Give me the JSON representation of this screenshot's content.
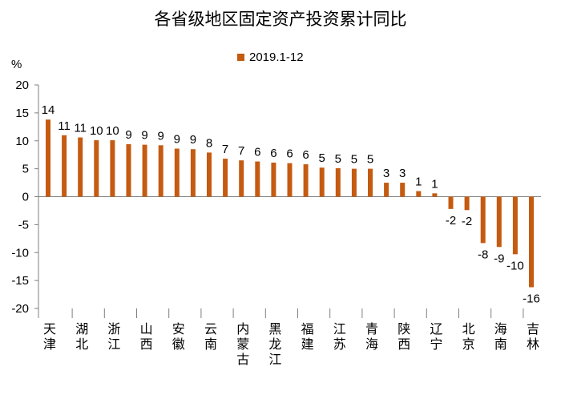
{
  "chart_data": {
    "type": "bar",
    "title": "各省级地区固定资产投资累计同比",
    "ylabel": "%",
    "xlabel": "",
    "ylim": [
      -20,
      20
    ],
    "yticks": [
      20,
      15,
      10,
      5,
      0,
      -5,
      -10,
      -15,
      -20
    ],
    "legend": "top-center",
    "grid": false,
    "series": [
      {
        "name": "2019.1-12",
        "color": "#C55A11",
        "values": [
          14,
          11,
          11,
          10,
          10,
          9,
          9,
          9,
          9,
          9,
          8,
          7,
          7,
          6,
          6,
          6,
          6,
          5,
          5,
          5,
          5,
          3,
          3,
          1,
          1,
          -2,
          -2,
          -8,
          -9,
          -10,
          -16
        ],
        "bar_heights": [
          13.8,
          11.0,
          10.6,
          10.1,
          10.1,
          9.4,
          9.3,
          9.2,
          8.6,
          8.5,
          7.9,
          6.8,
          6.5,
          6.3,
          6.1,
          6.0,
          5.8,
          5.2,
          5.1,
          5.0,
          5.0,
          2.5,
          2.5,
          1.0,
          0.6,
          -2.2,
          -2.4,
          -8.3,
          -9.0,
          -10.3,
          -16.2
        ]
      }
    ],
    "category_labels": [
      "天津",
      "湖北",
      "浙江",
      "山西",
      "安徽",
      "云南",
      "内蒙古",
      "黑龙江",
      "福建",
      "江苏",
      "青海",
      "陕西",
      "辽宁",
      "北京",
      "海南",
      "吉林"
    ]
  }
}
